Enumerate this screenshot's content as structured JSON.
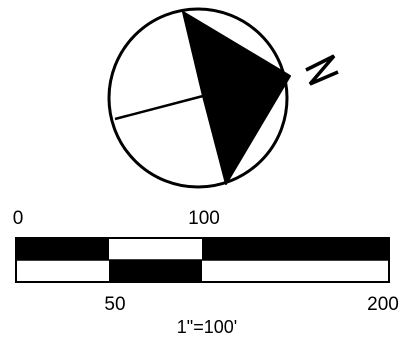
{
  "north_arrow": {
    "label": "N",
    "fill_color": "#000000",
    "background_color": "#ffffff"
  },
  "scale_bar": {
    "top_labels": [
      "0",
      "100"
    ],
    "bottom_labels": [
      "50",
      "200"
    ],
    "scale_text": "1\"=100'",
    "upper_row_pattern": [
      "black",
      "white",
      "black"
    ],
    "lower_row_pattern": [
      "white",
      "black",
      "white"
    ]
  }
}
